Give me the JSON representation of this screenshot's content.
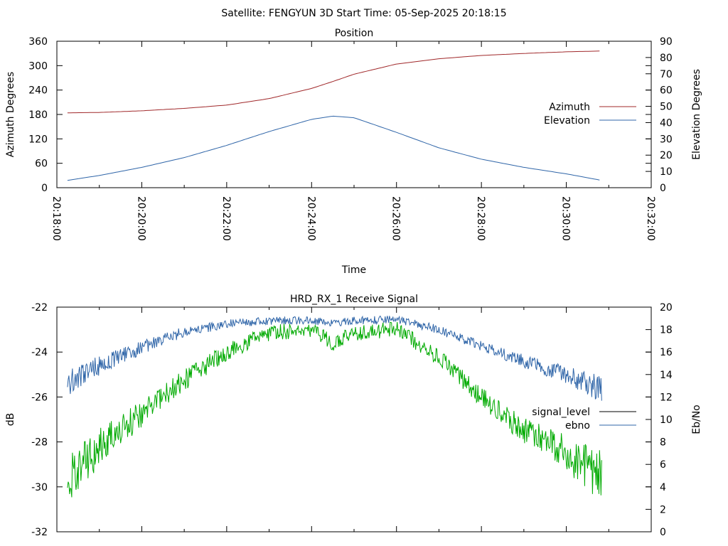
{
  "header": {
    "title": "Satellite: FENGYUN 3D    Start Time: 05-Sep-2025 20:18:15"
  },
  "chart_data": [
    {
      "type": "line",
      "title": "Position",
      "xlabel": "Time",
      "ylabel": "Azimuth Degrees",
      "y2label": "Elevation Degrees",
      "xlim": [
        "20:18:00",
        "20:32:00"
      ],
      "x_tick_labels": [
        "20:18:00",
        "20:20:00",
        "20:22:00",
        "20:24:00",
        "20:26:00",
        "20:28:00",
        "20:30:00",
        "20:32:00"
      ],
      "ylim": [
        0,
        360
      ],
      "y_ticks": [
        "0",
        "60",
        "120",
        "180",
        "240",
        "300",
        "360"
      ],
      "y2lim": [
        0,
        90
      ],
      "y2_ticks": [
        "0",
        "10",
        "20",
        "30",
        "40",
        "50",
        "60",
        "70",
        "80",
        "90"
      ],
      "grid": false,
      "legend": "right",
      "x_times": [
        "20:18:15",
        "20:19:00",
        "20:20:00",
        "20:21:00",
        "20:22:00",
        "20:23:00",
        "20:24:00",
        "20:24:30",
        "20:25:00",
        "20:26:00",
        "20:27:00",
        "20:28:00",
        "20:29:00",
        "20:30:00",
        "20:30:50"
      ],
      "series": [
        {
          "name": "Azimuth",
          "axis": "left",
          "color": "#a0282a",
          "values": [
            184,
            185,
            189,
            195,
            203,
            219,
            244,
            261,
            279,
            304,
            317,
            325,
            330,
            334,
            336
          ]
        },
        {
          "name": "Elevation",
          "axis": "right",
          "color": "#2f65a8",
          "values": [
            4.5,
            7.5,
            12.5,
            18.5,
            26,
            34.5,
            42,
            44,
            43,
            34,
            24.5,
            17.5,
            12.5,
            8.5,
            4.5
          ]
        }
      ]
    },
    {
      "type": "line",
      "title": "HRD_RX_1 Receive Signal",
      "ylabel": "dB",
      "y2label": "Eb/No",
      "xlim": [
        "20:18:00",
        "20:32:00"
      ],
      "ylim": [
        -32,
        -22
      ],
      "y_ticks": [
        "-22",
        "-24",
        "-26",
        "-28",
        "-30",
        "-32"
      ],
      "y2lim": [
        0,
        20
      ],
      "y2_ticks": [
        "0",
        "2",
        "4",
        "6",
        "8",
        "10",
        "12",
        "14",
        "16",
        "18",
        "20"
      ],
      "grid": false,
      "legend": "right",
      "x_times": [
        "20:18:15",
        "20:19:00",
        "20:20:00",
        "20:21:00",
        "20:22:00",
        "20:23:00",
        "20:24:00",
        "20:24:30",
        "20:25:00",
        "20:26:00",
        "20:27:00",
        "20:28:00",
        "20:29:00",
        "20:30:00",
        "20:30:50"
      ],
      "series": [
        {
          "name": "signal_level",
          "axis": "left",
          "color": "#000000",
          "values": []
        },
        {
          "name": "ebno",
          "axis": "right",
          "color": "#2f65a8",
          "values": [
            13.3,
            14.8,
            16.4,
            17.8,
            18.5,
            18.8,
            18.8,
            18.6,
            18.8,
            18.9,
            18.0,
            16.5,
            15.2,
            14.0,
            12.7
          ]
        },
        {
          "name": "",
          "axis": "right",
          "color": "#00aa00",
          "values": [
            4.5,
            7.5,
            10.5,
            13.5,
            16.0,
            17.7,
            18.0,
            16.8,
            17.7,
            18.0,
            15.5,
            12.0,
            9.0,
            7.0,
            4.8
          ]
        }
      ]
    }
  ]
}
